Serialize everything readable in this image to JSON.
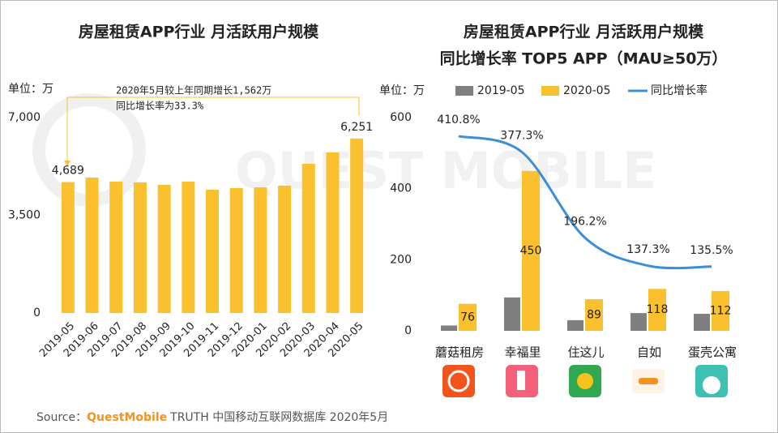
{
  "watermark": "QUEST MOBILE",
  "source": {
    "label": "Source：",
    "brand": "QuestMobile",
    "text": "TRUTH 中国移动互联网数据库 2020年5月"
  },
  "chart_data": [
    {
      "type": "bar",
      "title": "房屋租赁APP行业 月活跃用户规模",
      "unit_label": "单位：万",
      "categories": [
        "2019-05",
        "2019-06",
        "2019-07",
        "2019-08",
        "2019-09",
        "2019-10",
        "2019-11",
        "2019-12",
        "2020-01",
        "2020-02",
        "2020-03",
        "2020-04",
        "2020-05"
      ],
      "values": [
        4689,
        4850,
        4705,
        4680,
        4590,
        4705,
        4415,
        4475,
        4500,
        4560,
        5345,
        5750,
        6251
      ],
      "value_labels": [
        "4,689",
        null,
        null,
        null,
        null,
        null,
        null,
        null,
        null,
        null,
        null,
        null,
        "6,251"
      ],
      "color": "#fbc02d",
      "ylim": [
        0,
        7000
      ],
      "yticks": [
        0,
        {
          "value": 3500,
          "label": "3,500"
        },
        {
          "value": 7000,
          "label": "7,000"
        }
      ],
      "annotation": [
        "2020年5月较上年同期增长1,562万",
        "同比增长率为33.3%"
      ]
    },
    {
      "type": "bar_line",
      "title": "房屋租赁APP行业 月活跃用户规模",
      "subtitle": "同比增长率 TOP5 APP（MAU≥50万）",
      "unit_label": "单位：万",
      "categories": [
        "蘑菇租房",
        "幸福里",
        "住这儿",
        "自如",
        "蛋壳公寓"
      ],
      "series": [
        {
          "name": "2019-05",
          "color": "#7f7f7f",
          "values": [
            15,
            94,
            30,
            50,
            48
          ]
        },
        {
          "name": "2020-05",
          "color": "#fbc02d",
          "values": [
            76,
            450,
            89,
            118,
            112
          ]
        },
        {
          "name": "同比增长率",
          "color": "#3b8ed8",
          "type": "line",
          "axis": "y2",
          "values": [
            410.8,
            377.3,
            196.2,
            137.3,
            135.5
          ],
          "value_labels": [
            "410.8%",
            "377.3%",
            "196.2%",
            "137.3%",
            "135.5%"
          ]
        }
      ],
      "ylim": [
        0,
        600
      ],
      "yticks": [
        0,
        200,
        400,
        600
      ],
      "y2lim": [
        0,
        450
      ]
    }
  ]
}
